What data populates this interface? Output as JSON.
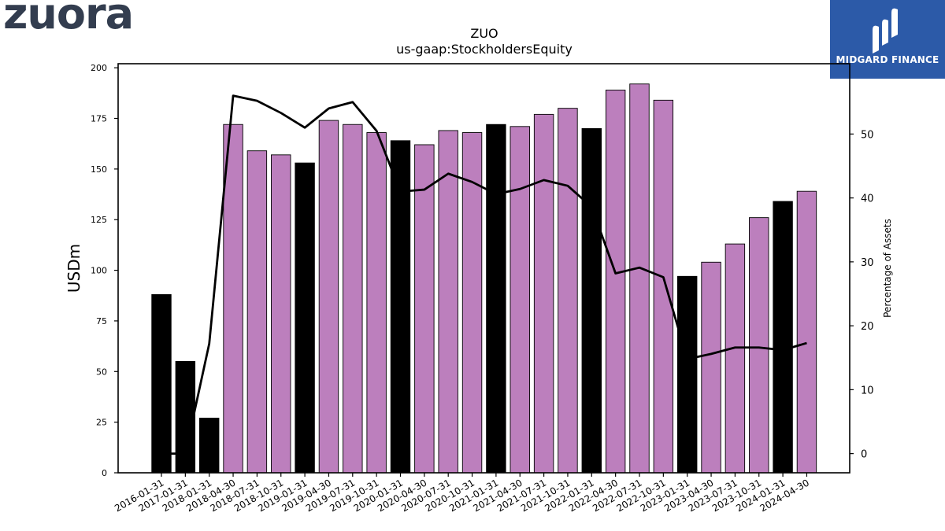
{
  "logo": {
    "text": "zuora"
  },
  "brand": {
    "name": "MIDGARD FINANCE"
  },
  "chart_data": {
    "type": "bar",
    "title": "ZUO",
    "subtitle": "us-gaap:StockholdersEquity",
    "ylabel": "USDm",
    "y2label": "Percentage of Assets",
    "ylim": [
      0,
      202
    ],
    "y2lim": [
      -3,
      61
    ],
    "yticks": [
      0,
      25,
      50,
      75,
      100,
      125,
      150,
      175,
      200
    ],
    "y2ticks": [
      0,
      10,
      20,
      30,
      40,
      50
    ],
    "categories": [
      "2016-01-31",
      "2017-01-31",
      "2018-01-31",
      "2018-04-30",
      "2018-07-31",
      "2018-10-31",
      "2019-01-31",
      "2019-04-30",
      "2019-07-31",
      "2019-10-31",
      "2020-01-31",
      "2020-04-30",
      "2020-07-31",
      "2020-10-31",
      "2021-01-31",
      "2021-04-30",
      "2021-07-31",
      "2021-10-31",
      "2022-01-31",
      "2022-04-30",
      "2022-07-31",
      "2022-10-31",
      "2023-01-31",
      "2023-04-30",
      "2023-07-31",
      "2023-10-31",
      "2024-01-31",
      "2024-04-30"
    ],
    "values": [
      88,
      55,
      27,
      172,
      159,
      157,
      153,
      174,
      172,
      168,
      164,
      162,
      169,
      168,
      172,
      171,
      177,
      180,
      170,
      189,
      192,
      184,
      97,
      104,
      113,
      126,
      134,
      139
    ],
    "annual": [
      true,
      true,
      true,
      false,
      false,
      false,
      true,
      false,
      false,
      false,
      true,
      false,
      false,
      false,
      true,
      false,
      false,
      false,
      true,
      false,
      false,
      false,
      true,
      false,
      false,
      false,
      true,
      false
    ],
    "line_values": [
      0,
      0,
      17.2,
      56,
      55.2,
      53.3,
      51,
      54,
      55,
      50.5,
      41,
      41.3,
      43.8,
      42.5,
      40.6,
      41.4,
      42.8,
      41.9,
      38.6,
      28.2,
      29.1,
      27.6,
      14.8,
      15.6,
      16.6,
      16.6,
      16.2,
      17.3
    ],
    "colors": {
      "annual": "#000000",
      "quarterly": "#bc7fbd",
      "line": "#000000"
    },
    "legend": "none",
    "grid": false
  }
}
